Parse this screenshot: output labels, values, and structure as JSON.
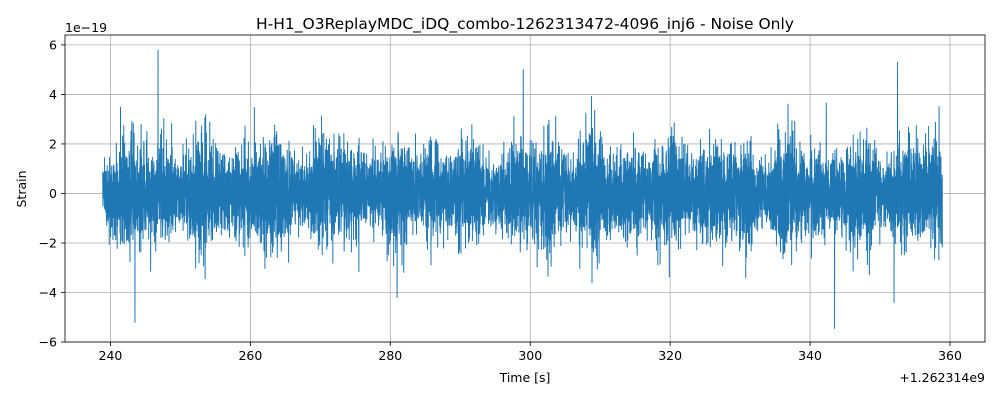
{
  "chart_data": {
    "type": "line",
    "title": "H-H1_O3ReplayMDC_iDQ_combo-1262313472-4096_inj6 - Noise Only",
    "xlabel": "Time [s]",
    "ylabel": "Strain",
    "x_offset_label": "+1.262314e9",
    "y_scale_label": "1e−19",
    "xlim": [
      233.5,
      365.0
    ],
    "ylim": [
      -6.0,
      6.4
    ],
    "xticks": [
      240,
      260,
      280,
      300,
      320,
      340,
      360
    ],
    "xtick_labels": [
      "240",
      "260",
      "280",
      "300",
      "320",
      "340",
      "360"
    ],
    "yticks": [
      -6,
      -4,
      -2,
      0,
      2,
      4,
      6
    ],
    "ytick_labels": [
      "−6",
      "−4",
      "−2",
      "0",
      "2",
      "4",
      "6"
    ],
    "grid": true,
    "series": [
      {
        "color": "#1f77b4",
        "x_range": [
          238.9,
          358.9
        ],
        "notable_peaks": [
          {
            "x": 246.8,
            "y": 5.8
          },
          {
            "x": 243.5,
            "y": -5.2
          },
          {
            "x": 299.0,
            "y": -5.35
          },
          {
            "x": 299.0,
            "y": 5.0
          },
          {
            "x": 343.5,
            "y": -5.45
          },
          {
            "x": 352.5,
            "y": 5.3
          },
          {
            "x": 352.0,
            "y": -4.4
          }
        ]
      }
    ]
  }
}
